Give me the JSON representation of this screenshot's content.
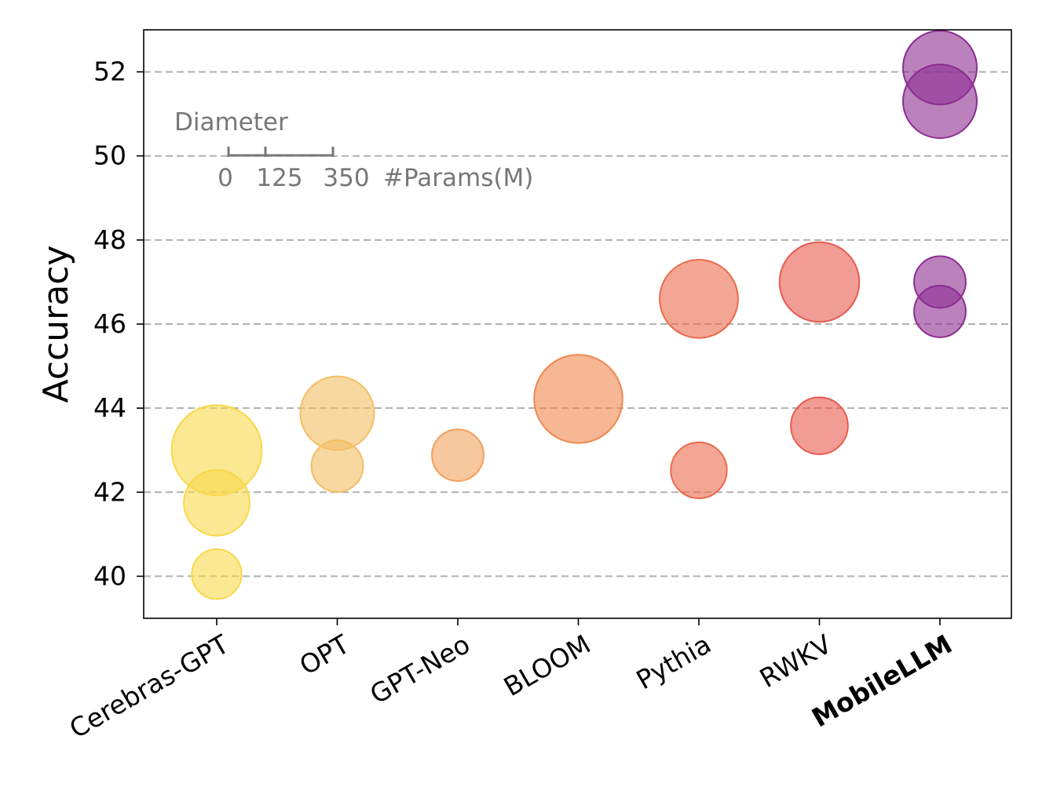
{
  "chart_data": {
    "type": "scatter",
    "title": "",
    "xlabel": "",
    "ylabel": "Accuracy",
    "ylim": [
      39,
      53
    ],
    "yticks": [
      40,
      42,
      44,
      46,
      48,
      50,
      52
    ],
    "grid": "y-dashed",
    "categories": [
      "Cerebras-GPT",
      "OPT",
      "GPT-Neo",
      "BLOOM",
      "Pythia",
      "RWKV",
      "MobileLLM"
    ],
    "highlight_category": "MobileLLM",
    "size_unit": "#Params(M)",
    "series": [
      {
        "category": "Cerebras-GPT",
        "color": "#f8d84a",
        "points": [
          {
            "y": 43.0,
            "params": 590
          },
          {
            "y": 41.75,
            "params": 256
          },
          {
            "y": 40.05,
            "params": 111
          }
        ]
      },
      {
        "category": "OPT",
        "color": "#f3be63",
        "points": [
          {
            "y": 43.88,
            "params": 350
          },
          {
            "y": 42.62,
            "params": 125
          }
        ]
      },
      {
        "category": "GPT-Neo",
        "color": "#f2a15e",
        "points": [
          {
            "y": 42.88,
            "params": 125
          }
        ]
      },
      {
        "category": "BLOOM",
        "color": "#f0874f",
        "points": [
          {
            "y": 44.22,
            "params": 560
          }
        ]
      },
      {
        "category": "Pythia",
        "color": "#ec6a4c",
        "points": [
          {
            "y": 46.6,
            "params": 410
          },
          {
            "y": 42.52,
            "params": 160
          }
        ]
      },
      {
        "category": "RWKV",
        "color": "#e85a4f",
        "points": [
          {
            "y": 47.0,
            "params": 430
          },
          {
            "y": 43.58,
            "params": 169
          }
        ]
      },
      {
        "category": "MobileLLM",
        "color": "#8c2d91",
        "points": [
          {
            "y": 52.1,
            "params": 350
          },
          {
            "y": 51.3,
            "params": 350
          },
          {
            "y": 47.0,
            "params": 125
          },
          {
            "y": 46.3,
            "params": 125
          }
        ]
      }
    ],
    "size_legend": {
      "title": "Diameter",
      "ticks": [
        "0",
        "125",
        "350"
      ],
      "unit_label": "#Params(M)"
    }
  }
}
